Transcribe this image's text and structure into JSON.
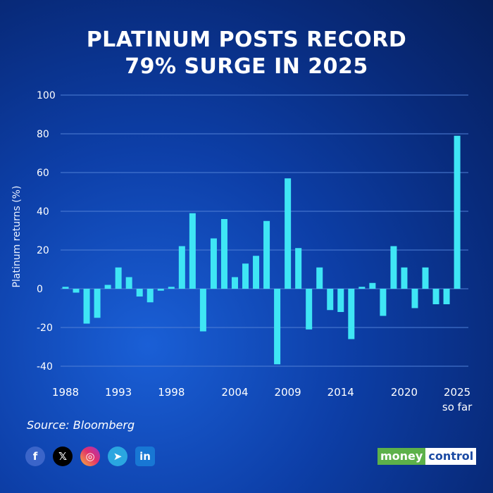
{
  "header": {
    "title_line1": "PLATINUM POSTS RECORD",
    "title_line2": "79% SURGE IN 2025"
  },
  "source": "Source: Bloomberg",
  "social": {
    "facebook": "f",
    "x": "𝕏",
    "instagram": "◎",
    "telegram": "➤",
    "linkedin": "in"
  },
  "brand": {
    "part1": "money",
    "part2": "control"
  },
  "colors": {
    "bar": "#3fe6f5",
    "grid": "#4f7fd6",
    "background": "#0d3fa8"
  },
  "chart_data": {
    "type": "bar",
    "ylabel": "Platinum returns (%)",
    "ylim": [
      -40,
      100
    ],
    "yticks": [
      -40,
      -20,
      0,
      20,
      40,
      60,
      80,
      100
    ],
    "grid": true,
    "x_tick_labels": [
      {
        "year": 1988,
        "label": "1988",
        "sub": ""
      },
      {
        "year": 1993,
        "label": "1993",
        "sub": ""
      },
      {
        "year": 1998,
        "label": "1998",
        "sub": ""
      },
      {
        "year": 2004,
        "label": "2004",
        "sub": ""
      },
      {
        "year": 2009,
        "label": "2009",
        "sub": ""
      },
      {
        "year": 2014,
        "label": "2014",
        "sub": ""
      },
      {
        "year": 2020,
        "label": "2020",
        "sub": ""
      },
      {
        "year": 2025,
        "label": "2025",
        "sub": "so far"
      }
    ],
    "categories": [
      1988,
      1989,
      1990,
      1991,
      1992,
      1993,
      1994,
      1995,
      1996,
      1997,
      1998,
      1999,
      2000,
      2001,
      2002,
      2003,
      2004,
      2005,
      2006,
      2007,
      2008,
      2009,
      2010,
      2011,
      2012,
      2013,
      2014,
      2015,
      2016,
      2017,
      2018,
      2019,
      2020,
      2021,
      2022,
      2023,
      2024,
      2025
    ],
    "values": [
      1,
      -2,
      -18,
      -15,
      2,
      11,
      6,
      -4,
      -7,
      -1,
      1,
      22,
      39,
      -22,
      26,
      36,
      6,
      13,
      17,
      35,
      -39,
      57,
      21,
      -21,
      11,
      -11,
      -12,
      -26,
      1,
      3,
      -14,
      22,
      11,
      -10,
      11,
      -8,
      -8,
      79
    ]
  }
}
